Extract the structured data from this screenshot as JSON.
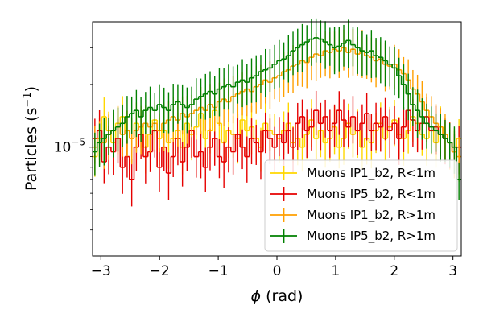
{
  "chart_data": {
    "type": "line",
    "xlabel_symbol": "ϕ",
    "xlabel_unit": " (rad)",
    "ylabel_main": "Particles (s",
    "ylabel_sup": "−1",
    "ylabel_close": ")",
    "xlim": [
      -3.14159,
      3.14159
    ],
    "ylim": [
      3e-06,
      4e-05
    ],
    "yscale": "log",
    "xticks": [
      -3,
      -2,
      -1,
      0,
      1,
      2,
      3
    ],
    "xtick_labels": [
      "−3",
      "−2",
      "−1",
      "0",
      "1",
      "2",
      "3"
    ],
    "ytick_major_value": 1e-05,
    "ytick_major_base": "10",
    "ytick_major_exp": "−5",
    "yminor_ticks": [
      4e-06,
      5e-06,
      6e-06,
      7e-06,
      8e-06,
      9e-06,
      2e-05,
      3e-05
    ],
    "legend_position": "lower right",
    "n_bins": 80,
    "series": [
      {
        "name": "Muons IP1_b2, R<1m",
        "color": "#FFD700",
        "values": [
          9e-06,
          1.1e-05,
          1.4e-05,
          1.2e-05,
          1.05e-05,
          1.3e-05,
          1.4e-05,
          1.2e-05,
          1.1e-05,
          1.3e-05,
          1.25e-05,
          1e-05,
          1.15e-05,
          1.35e-05,
          1.1e-05,
          1.2e-05,
          1.05e-05,
          1.1e-05,
          1.2e-05,
          1e-05,
          1.3e-05,
          1.15e-05,
          1.25e-05,
          1.45e-05,
          1.1e-05,
          1.2e-05,
          1.5e-05,
          1.3e-05,
          1.05e-05,
          1.2e-05,
          1.15e-05,
          1.1e-05,
          1.35e-05,
          1.2e-05,
          1.25e-05,
          1.1e-05,
          1e-05,
          1.3e-05,
          1.2e-05,
          1.15e-05,
          1.1e-05,
          1.2e-05,
          1.3e-05,
          1.05e-05,
          1.1e-05,
          1e-05,
          1.15e-05,
          1.35e-05,
          1.1e-05,
          1.2e-05,
          1.05e-05,
          1.1e-05,
          1.25e-05,
          1e-05,
          1.1e-05,
          1.3e-05,
          1.15e-05,
          1.2e-05,
          1e-05,
          1.1e-05,
          1.05e-05,
          1.2e-05,
          1.3e-05,
          1.1e-05,
          1.25e-05,
          1.35e-05,
          1.15e-05,
          1.1e-05,
          1.2e-05,
          1.4e-05,
          1.3e-05,
          1.15e-05,
          1.1e-05,
          1.2e-05,
          1.05e-05,
          1.25e-05,
          1.1e-05,
          1.05e-05,
          1e-05,
          1.1e-05
        ]
      },
      {
        "name": "Muons IP5_b2, R<1m",
        "color": "#E60000",
        "values": [
          1.1e-05,
          1.2e-05,
          8.5e-06,
          1e-05,
          9.5e-06,
          1.1e-05,
          8e-06,
          9e-06,
          7e-06,
          1e-05,
          1.15e-05,
          9e-06,
          9.5e-06,
          1.2e-05,
          8e-06,
          1e-05,
          7.5e-06,
          9e-06,
          1.1e-05,
          8.5e-06,
          1e-05,
          1.2e-05,
          9e-06,
          9.5e-06,
          8e-06,
          1e-05,
          1.1e-05,
          9e-06,
          8.5e-06,
          1e-05,
          9.5e-06,
          1.15e-05,
          1e-05,
          9e-06,
          1.1e-05,
          1.05e-05,
          9.5e-06,
          1.2e-05,
          1.1e-05,
          1e-05,
          1.15e-05,
          1.05e-05,
          1.2e-05,
          1e-05,
          1.3e-05,
          1.4e-05,
          1.2e-05,
          1.25e-05,
          1.5e-05,
          1.3e-05,
          1.4e-05,
          1.2e-05,
          1.3e-05,
          1.5e-05,
          1.35e-05,
          1.25e-05,
          1.4e-05,
          1.2e-05,
          1.3e-05,
          1.45e-05,
          1.2e-05,
          1.3e-05,
          1.25e-05,
          1.4e-05,
          1.2e-05,
          1.3e-05,
          1.1e-05,
          1.25e-05,
          1.5e-05,
          1.35e-05,
          1.2e-05,
          1.3e-05,
          1.4e-05,
          1.2e-05,
          1.25e-05,
          1.15e-05,
          1.1e-05,
          1.05e-05,
          9.5e-06,
          1e-05
        ]
      },
      {
        "name": "Muons IP1_b2, R>1m",
        "color": "#FF9F00",
        "values": [
          1e-05,
          1.1e-05,
          1.05e-05,
          1.15e-05,
          1.2e-05,
          1.25e-05,
          1.15e-05,
          1.2e-05,
          1.1e-05,
          1.2e-05,
          1.25e-05,
          1.3e-05,
          1.25e-05,
          1.3e-05,
          1.2e-05,
          1.3e-05,
          1.35e-05,
          1.4e-05,
          1.35e-05,
          1.45e-05,
          1.4e-05,
          1.45e-05,
          1.5e-05,
          1.55e-05,
          1.5e-05,
          1.6e-05,
          1.55e-05,
          1.65e-05,
          1.7e-05,
          1.65e-05,
          1.75e-05,
          1.8e-05,
          1.85e-05,
          1.9e-05,
          1.85e-05,
          1.95e-05,
          2e-05,
          2.1e-05,
          2.05e-05,
          2.15e-05,
          2.2e-05,
          2.3e-05,
          2.35e-05,
          2.45e-05,
          2.5e-05,
          2.6e-05,
          2.55e-05,
          2.7e-05,
          2.8e-05,
          2.75e-05,
          2.9e-05,
          2.85e-05,
          2.95e-05,
          2.9e-05,
          3e-05,
          2.85e-05,
          2.95e-05,
          2.8e-05,
          2.9e-05,
          2.75e-05,
          2.7e-05,
          2.6e-05,
          2.65e-05,
          2.5e-05,
          2.45e-05,
          2.5e-05,
          2.35e-05,
          2.25e-05,
          2.1e-05,
          1.9e-05,
          1.8e-05,
          1.65e-05,
          1.5e-05,
          1.4e-05,
          1.3e-05,
          1.25e-05,
          1.15e-05,
          1.05e-05,
          9.5e-06,
          9e-06
        ]
      },
      {
        "name": "Muons IP5_b2, R>1m",
        "color": "#008000",
        "values": [
          9.5e-06,
          1.05e-05,
          1.1e-05,
          1.15e-05,
          1.2e-05,
          1.25e-05,
          1.3e-05,
          1.4e-05,
          1.45e-05,
          1.5e-05,
          1.4e-05,
          1.5e-05,
          1.55e-05,
          1.5e-05,
          1.6e-05,
          1.55e-05,
          1.5e-05,
          1.6e-05,
          1.65e-05,
          1.6e-05,
          1.55e-05,
          1.6e-05,
          1.7e-05,
          1.75e-05,
          1.8e-05,
          1.85e-05,
          1.8e-05,
          1.9e-05,
          1.95e-05,
          2e-05,
          1.95e-05,
          2.05e-05,
          2.1e-05,
          2.05e-05,
          2.15e-05,
          2.2e-05,
          2.3e-05,
          2.35e-05,
          2.4e-05,
          2.5e-05,
          2.6e-05,
          2.65e-05,
          2.75e-05,
          2.9e-05,
          3e-05,
          3.1e-05,
          3.2e-05,
          3.3e-05,
          3.35e-05,
          3.3e-05,
          3.2e-05,
          3.1e-05,
          3e-05,
          3.05e-05,
          3.15e-05,
          3.25e-05,
          3.1e-05,
          3e-05,
          2.9e-05,
          2.85e-05,
          2.9e-05,
          2.75e-05,
          2.7e-05,
          2.6e-05,
          2.5e-05,
          2.4e-05,
          2.2e-05,
          2e-05,
          1.8e-05,
          1.6e-05,
          1.5e-05,
          1.4e-05,
          1.3e-05,
          1.25e-05,
          1.2e-05,
          1.15e-05,
          1.1e-05,
          1.05e-05,
          1e-05,
          7e-06
        ]
      }
    ]
  }
}
